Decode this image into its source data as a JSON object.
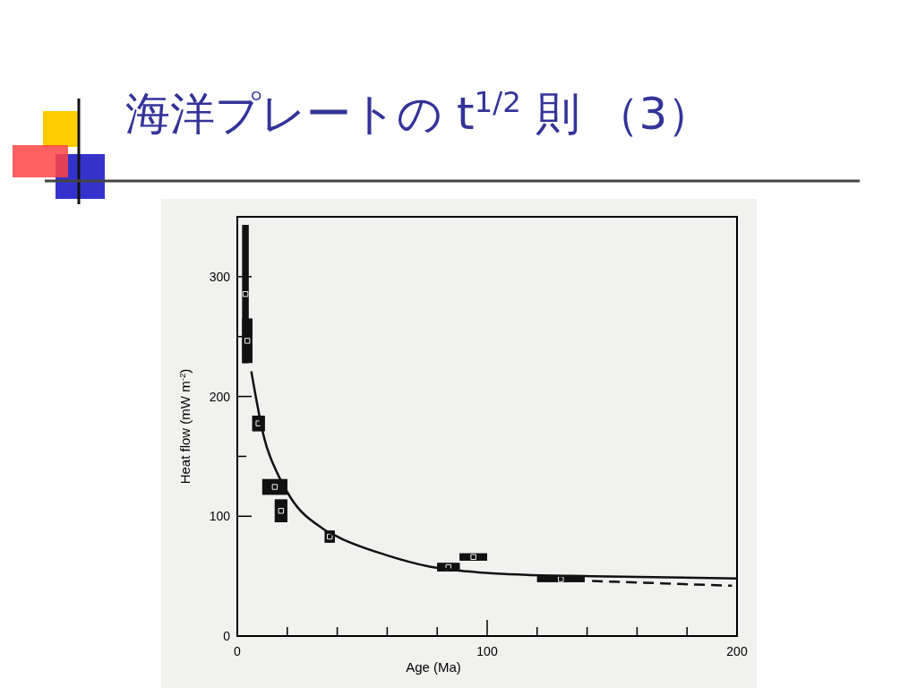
{
  "chart_data": {
    "type": "scatter",
    "title": "海洋プレートの t$^{1/2}$ 則 （3）",
    "xlabel": "Age (Ma)",
    "ylabel": "Heat flow (mW m$^{-2}$)",
    "xlim": [
      0,
      200
    ],
    "ylim": [
      0,
      350
    ],
    "xticks": [
      0,
      {
        "value": 20,
        "label": null
      },
      {
        "value": 40,
        "label": null
      },
      {
        "value": 60,
        "label": null
      },
      {
        "value": 80,
        "label": null
      },
      100,
      {
        "value": 120,
        "label": null
      },
      {
        "value": 140,
        "label": null
      },
      {
        "value": 160,
        "label": null
      },
      {
        "value": 180,
        "label": null
      },
      200
    ],
    "yticks": [
      0,
      100,
      {
        "value": 150,
        "label": null
      },
      200,
      {
        "value": 250,
        "label": null
      },
      300
    ],
    "grid": false,
    "legend": false,
    "series": [
      {
        "color": "#111111",
        "marker": "square",
        "x": [
          3.25,
          4,
          8.5,
          15,
          17.5,
          37,
          84.5,
          94.5,
          129.5
        ],
        "values": [
          285.5,
          246.5,
          177.5,
          124.5,
          104.5,
          83,
          57.5,
          66,
          47.5
        ],
        "xerrors": [
          [
            2,
            4.5
          ],
          [
            2,
            6
          ],
          [
            6,
            11
          ],
          [
            10,
            20
          ],
          [
            15,
            20
          ],
          [
            35,
            39
          ],
          [
            80,
            89
          ],
          [
            89,
            100
          ],
          [
            120,
            139
          ]
        ],
        "errors": [
          [
            228,
            343
          ],
          [
            228,
            265
          ],
          [
            171,
            184
          ],
          [
            118,
            131
          ],
          [
            95,
            114
          ],
          [
            78,
            88
          ],
          [
            54,
            61
          ],
          [
            63,
            69
          ],
          [
            45,
            50
          ]
        ]
      },
      {
        "type": "line",
        "color": "#111111",
        "line_style": "solid",
        "x": [
          5.6,
          10.8,
          16.7,
          21.5,
          34,
          41,
          59,
          77,
          92,
          116,
          142,
          200
        ],
        "values": [
          221,
          165,
          133,
          115,
          90,
          82,
          68,
          58,
          54,
          51,
          50,
          48
        ]
      },
      {
        "type": "line",
        "color": "#111111",
        "line_style": "dashed",
        "x": [
          142,
          170,
          198
        ],
        "values": [
          46,
          44,
          42
        ]
      }
    ]
  }
}
